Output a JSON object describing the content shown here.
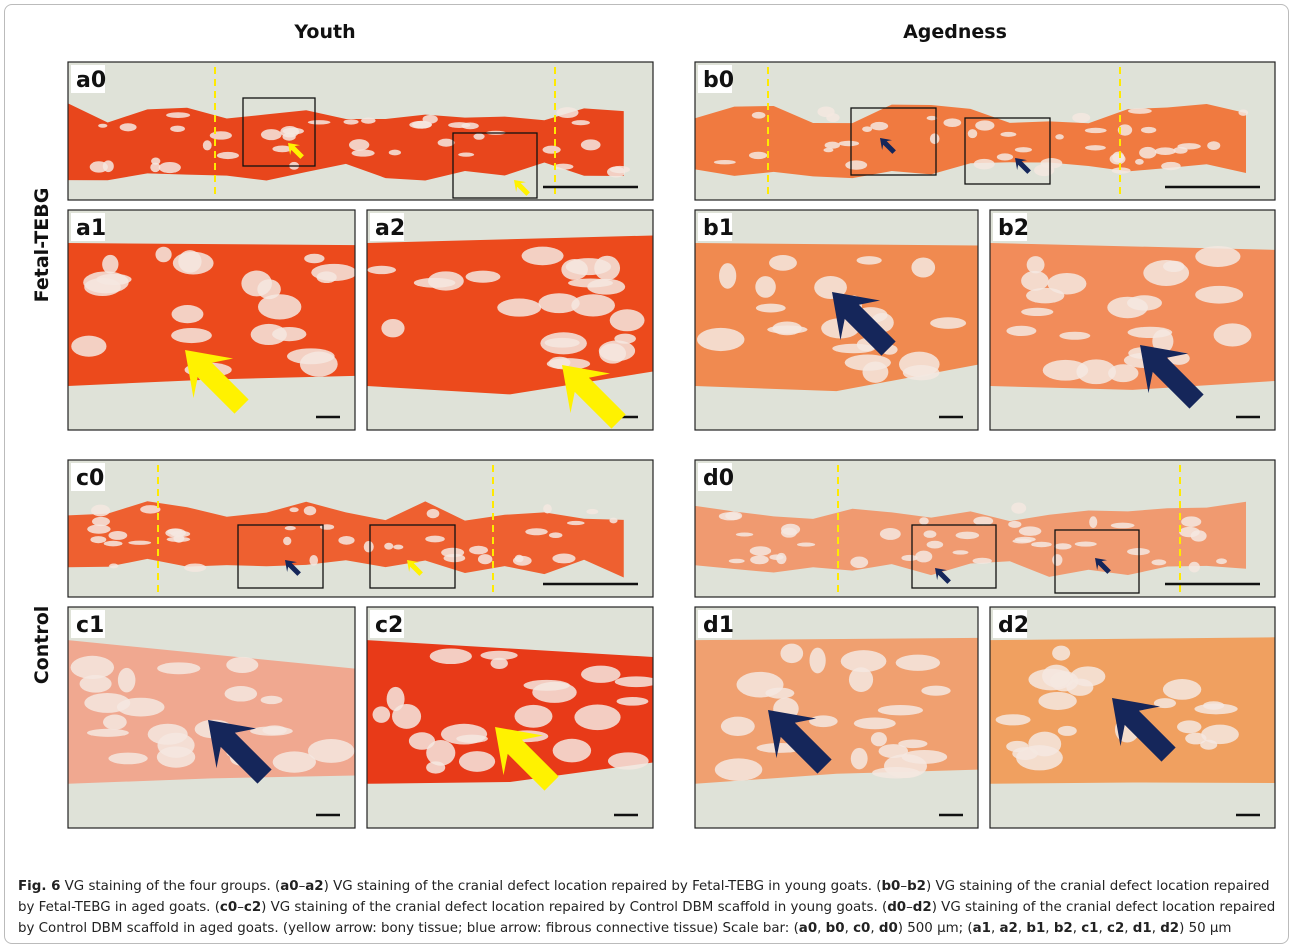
{
  "columns": [
    "Youth",
    "Agedness"
  ],
  "rows": [
    "Fetal-TEBG",
    "Control"
  ],
  "panels": [
    "a0",
    "a1",
    "a2",
    "b0",
    "b1",
    "b2",
    "c0",
    "c1",
    "c2",
    "d0",
    "d1",
    "d2"
  ],
  "caption": [
    "Fig. 6",
    " VG staining of the four groups. (",
    "a0",
    "–",
    "a2",
    ") VG staining of the cranial defect location repaired by Fetal-TEBG in young goats. (",
    "b0",
    "–",
    "b2",
    ") VG staining of the cranial defect location repaired by Fetal-TEBG in aged goats. (",
    "c0",
    "–",
    "c2",
    ") VG staining of the cranial defect location repaired by Control DBM scaffold in young goats. (",
    "d0",
    "–",
    "d2",
    ") VG staining of the cranial defect location repaired by Control DBM scaffold in aged goats. (yellow arrow: bony tissue; blue arrow: fibrous connective tissue) Scale bar: (",
    "a0",
    ", ",
    "b0",
    ", ",
    "c0",
    ", ",
    "d0",
    ") 500 μm; (",
    "a1",
    ", ",
    "a2",
    ", ",
    "b1",
    ", ",
    "b2",
    ", ",
    "c1",
    ", ",
    "c2",
    ", ",
    "d1",
    ", ",
    "d2",
    ") 50 μm"
  ]
}
